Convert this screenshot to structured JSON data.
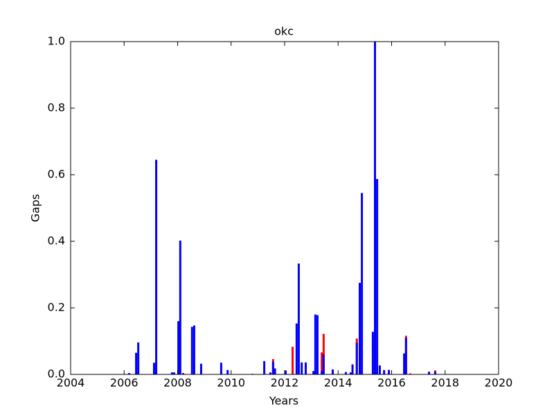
{
  "chart_data": {
    "type": "bar",
    "title": "okc",
    "x_label": "Years",
    "y_label": "Gaps",
    "x": [
      2006.15,
      2006.41,
      2006.49,
      2007.08,
      2007.16,
      2007.75,
      2007.83,
      2007.99,
      2008.06,
      2008.17,
      2008.5,
      2008.58,
      2008.84,
      2009.59,
      2009.83,
      2010.76,
      2011.2,
      2011.43,
      2011.53,
      2011.6,
      2012.0,
      2012.26,
      2012.41,
      2012.49,
      2012.6,
      2012.75,
      2013.04,
      2013.11,
      2013.19,
      2013.35,
      2013.42,
      2013.76,
      2014.25,
      2014.43,
      2014.5,
      2014.66,
      2014.77,
      2014.85,
      2015.26,
      2015.34,
      2015.42,
      2015.52,
      2015.68,
      2015.86,
      2016.43,
      2016.5,
      2016.66,
      2017.36,
      2017.59
    ],
    "series": [
      {
        "color": "#ff0000",
        "values": [
          null,
          null,
          null,
          null,
          null,
          null,
          null,
          null,
          null,
          null,
          null,
          null,
          null,
          null,
          null,
          0.002,
          null,
          null,
          0.046,
          null,
          null,
          0.083,
          null,
          null,
          null,
          null,
          null,
          null,
          null,
          0.066,
          0.122,
          null,
          null,
          null,
          null,
          0.108,
          null,
          null,
          null,
          null,
          null,
          null,
          null,
          0.014,
          null,
          0.116,
          0.003,
          null,
          0.012
        ]
      },
      {
        "color": "#0000ff",
        "values": [
          0.004,
          0.065,
          0.096,
          0.035,
          0.645,
          0.006,
          0.006,
          0.16,
          0.402,
          0.004,
          0.143,
          0.147,
          0.032,
          0.035,
          0.013,
          null,
          0.04,
          0.006,
          0.038,
          0.018,
          0.012,
          null,
          0.153,
          0.333,
          0.036,
          0.036,
          0.01,
          0.18,
          0.178,
          0.01,
          0.06,
          0.015,
          0.007,
          0.006,
          0.03,
          0.095,
          0.275,
          0.545,
          0.128,
          1.0,
          0.587,
          0.027,
          0.013,
          0.012,
          0.063,
          0.11,
          null,
          0.008,
          0.008
        ]
      }
    ],
    "xlim": [
      2004,
      2020
    ],
    "xticks": [
      2004,
      2006,
      2008,
      2010,
      2012,
      2014,
      2016,
      2018,
      2020
    ],
    "ylim": [
      0,
      1
    ],
    "yticks": [
      {
        "value": 0,
        "label": "0.0"
      },
      0.2,
      0.4,
      0.6,
      0.8,
      {
        "value": 1,
        "label": "1.0"
      }
    ]
  }
}
